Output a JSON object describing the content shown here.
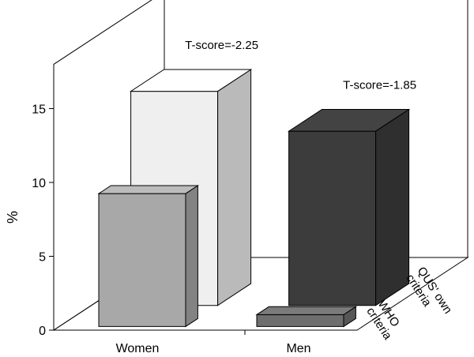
{
  "chart_data": {
    "type": "bar",
    "ylabel": "%",
    "ylim": [
      0,
      18
    ],
    "yticks": [
      0,
      5,
      10,
      15
    ],
    "categories": [
      "Women",
      "Men"
    ],
    "depth_categories": [
      {
        "lines": [
          "WHO",
          "criteria"
        ]
      },
      {
        "lines": [
          "QUS' own",
          "criteria"
        ]
      }
    ],
    "series": [
      {
        "values": [
          9.0,
          0.8
        ],
        "colors": [
          "#a8a8a8",
          "#6e6e6e"
        ]
      },
      {
        "values": [
          14.5,
          11.8
        ],
        "colors": [
          "#efefef",
          "#3c3c3c"
        ]
      }
    ],
    "annotations": [
      {
        "category": "Women",
        "text": "T-score=-2.25"
      },
      {
        "category": "Men",
        "text": "T-score=-1.85"
      }
    ],
    "grid": false,
    "legend": "none"
  }
}
